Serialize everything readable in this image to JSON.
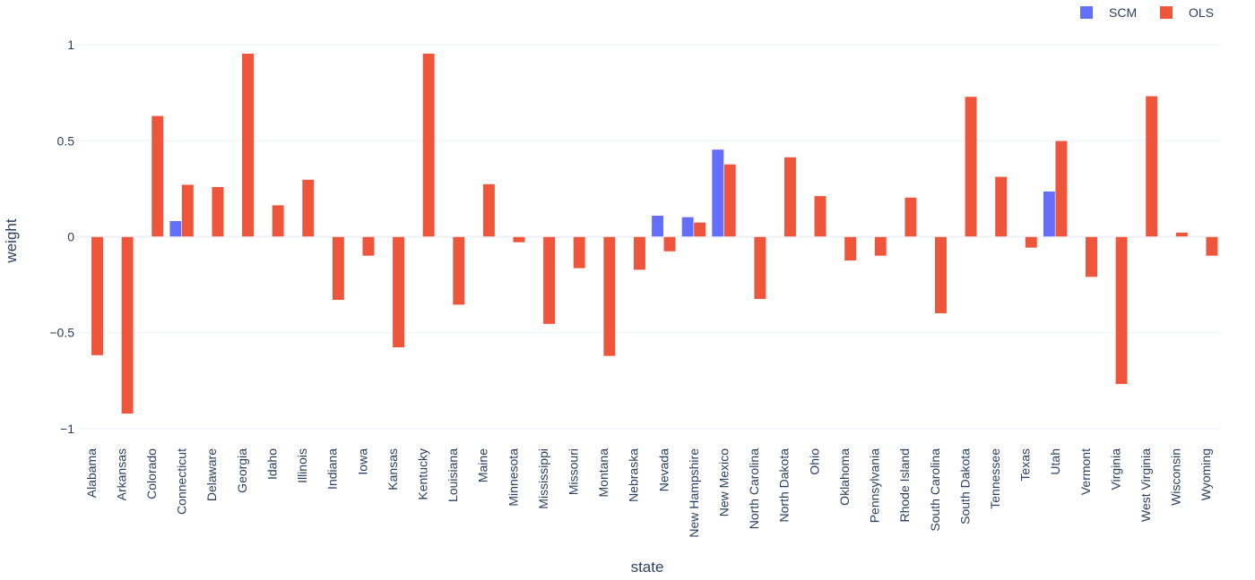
{
  "chart_data": {
    "type": "bar",
    "barmode": "group",
    "xlabel": "state",
    "ylabel": "weight",
    "ylim": [
      -1.07,
      1.07
    ],
    "yticks": [
      1,
      0.5,
      0,
      -0.5,
      -1
    ],
    "ytick_labels": [
      "1",
      "0.5",
      "0",
      "−0.5",
      "−1"
    ],
    "grid": true,
    "legend_position": "top-right",
    "categories": [
      "Alabama",
      "Arkansas",
      "Colorado",
      "Connecticut",
      "Delaware",
      "Georgia",
      "Idaho",
      "Illinois",
      "Indiana",
      "Iowa",
      "Kansas",
      "Kentucky",
      "Louisiana",
      "Maine",
      "Minnesota",
      "Mississippi",
      "Missouri",
      "Montana",
      "Nebraska",
      "Nevada",
      "New Hampshire",
      "New Mexico",
      "North Carolina",
      "North Dakota",
      "Ohio",
      "Oklahoma",
      "Pennsylvania",
      "Rhode Island",
      "South Carolina",
      "South Dakota",
      "Tennessee",
      "Texas",
      "Utah",
      "Vermont",
      "Virginia",
      "West Virginia",
      "Wisconsin",
      "Wyoming"
    ],
    "series": [
      {
        "name": "SCM",
        "color": "#636efa",
        "values": [
          0,
          0,
          0,
          0.083,
          0,
          0,
          0,
          0,
          0,
          0,
          0,
          0,
          0,
          0,
          0,
          0,
          0,
          0,
          0,
          0.111,
          0.103,
          0.455,
          0,
          0,
          0,
          0,
          0,
          0,
          0,
          0,
          0,
          0,
          0.237,
          0,
          0,
          0,
          0,
          0
        ]
      },
      {
        "name": "OLS",
        "color": "#ef553b",
        "values": [
          -0.618,
          -0.922,
          0.63,
          0.272,
          0.26,
          0.955,
          0.165,
          0.298,
          -0.33,
          -0.1,
          -0.577,
          0.955,
          -0.355,
          0.275,
          -0.03,
          -0.455,
          -0.165,
          -0.622,
          -0.173,
          -0.077,
          0.075,
          0.378,
          -0.325,
          0.415,
          0.213,
          -0.125,
          -0.1,
          0.205,
          -0.4,
          0.73,
          0.313,
          -0.058,
          0.5,
          -0.21,
          -0.768,
          0.733,
          0.023,
          -0.1
        ]
      }
    ]
  }
}
